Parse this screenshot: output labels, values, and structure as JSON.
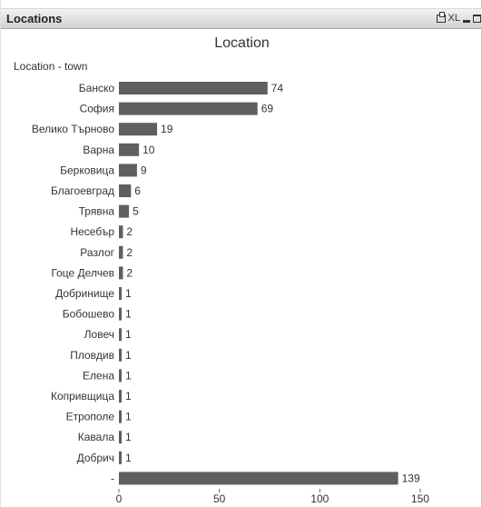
{
  "window": {
    "title": "Locations",
    "xl_label": "XL"
  },
  "icons": [
    "print-icon",
    "xl-icon",
    "minimize-icon",
    "maximize-icon"
  ],
  "chart_data": {
    "type": "bar",
    "orientation": "horizontal",
    "title": "Location",
    "dimension_label": "Location - town",
    "categories": [
      "Банско",
      "София",
      "Велико Търново",
      "Варна",
      "Берковица",
      "Благоевград",
      "Трявна",
      "Несебър",
      "Разлог",
      "Гоце Делчев",
      "Добринище",
      "Бобошево",
      "Ловеч",
      "Пловдив",
      "Елена",
      "Копривщица",
      "Етрополе",
      "Кавала",
      "Добрич",
      "-"
    ],
    "values": [
      74,
      69,
      19,
      10,
      9,
      6,
      5,
      2,
      2,
      2,
      1,
      1,
      1,
      1,
      1,
      1,
      1,
      1,
      1,
      139
    ],
    "xlim": [
      0,
      150
    ],
    "xticks": [
      0,
      50,
      100,
      150
    ],
    "bar_color": "#5f5f5f",
    "grid": false,
    "legend": "none"
  }
}
